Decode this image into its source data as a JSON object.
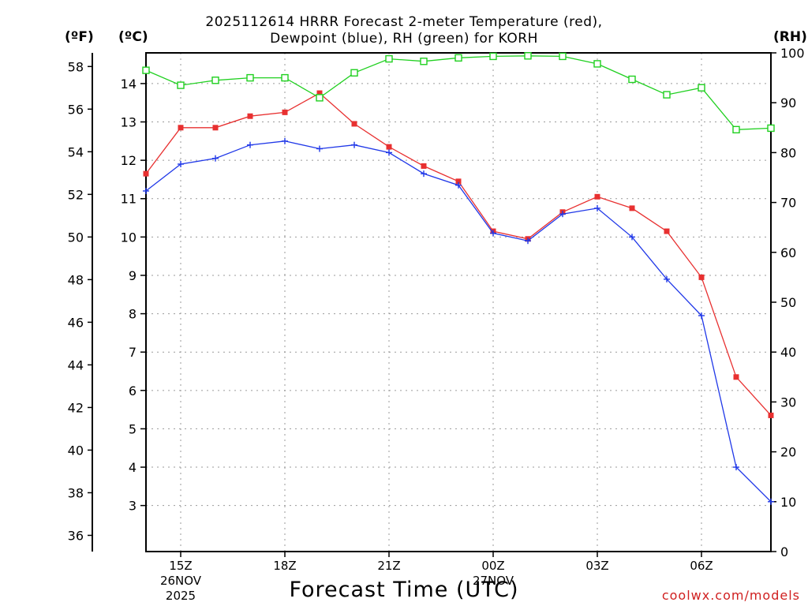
{
  "chart_data": {
    "type": "line",
    "title_line1": "2025112614 HRRR Forecast 2-meter Temperature (red),",
    "title_line2": "Dewpoint (blue), RH (green) for KORH",
    "xlabel": "Forecast Time (UTC)",
    "credit": "coolwx.com/models",
    "units": {
      "fahrenheit": "(ºF)",
      "celsius": "(ºC)",
      "rh": "(RH)"
    },
    "x_hours": [
      14,
      15,
      16,
      17,
      18,
      19,
      20,
      21,
      22,
      23,
      24,
      25,
      26,
      27,
      28,
      29,
      30,
      31,
      32
    ],
    "x_range": [
      14,
      32
    ],
    "x_ticks": [
      {
        "hour": 15,
        "label": "15Z",
        "date": "26NOV",
        "year": "2025"
      },
      {
        "hour": 18,
        "label": "18Z"
      },
      {
        "hour": 21,
        "label": "21Z"
      },
      {
        "hour": 24,
        "label": "00Z",
        "date": "27NOV"
      },
      {
        "hour": 27,
        "label": "03Z"
      },
      {
        "hour": 30,
        "label": "06Z"
      }
    ],
    "celsius_axis": {
      "min": 1.8,
      "max": 14.8,
      "ticks": [
        3,
        4,
        5,
        6,
        7,
        8,
        9,
        10,
        11,
        12,
        13,
        14
      ]
    },
    "fahrenheit_ticks": [
      36,
      38,
      40,
      42,
      44,
      46,
      48,
      50,
      52,
      54,
      56,
      58
    ],
    "rh_axis": {
      "min": 0,
      "max": 100,
      "ticks": [
        0,
        10,
        20,
        30,
        40,
        50,
        60,
        70,
        80,
        90,
        100
      ]
    },
    "series": [
      {
        "name": "Temperature",
        "axis": "celsius",
        "color": "#e83030",
        "marker": "filled-square",
        "values": [
          11.65,
          12.85,
          12.85,
          13.15,
          13.25,
          13.75,
          12.95,
          12.35,
          11.85,
          11.45,
          10.15,
          9.95,
          10.65,
          11.05,
          10.75,
          10.15,
          8.95,
          6.35,
          5.35
        ]
      },
      {
        "name": "Dewpoint",
        "axis": "celsius",
        "color": "#2038e8",
        "marker": "plus",
        "values": [
          11.2,
          11.9,
          12.05,
          12.4,
          12.5,
          12.3,
          12.4,
          12.2,
          11.65,
          11.35,
          10.1,
          9.9,
          10.6,
          10.75,
          10.0,
          8.9,
          7.95,
          4.0,
          3.1
        ]
      },
      {
        "name": "RH",
        "axis": "rh",
        "color": "#20d020",
        "marker": "open-square",
        "values": [
          96.5,
          93.5,
          94.5,
          95.0,
          95.0,
          91.0,
          96.0,
          98.8,
          98.3,
          99.0,
          99.3,
          99.4,
          99.3,
          97.8,
          94.7,
          91.6,
          93.0,
          84.6,
          84.9
        ]
      }
    ]
  }
}
